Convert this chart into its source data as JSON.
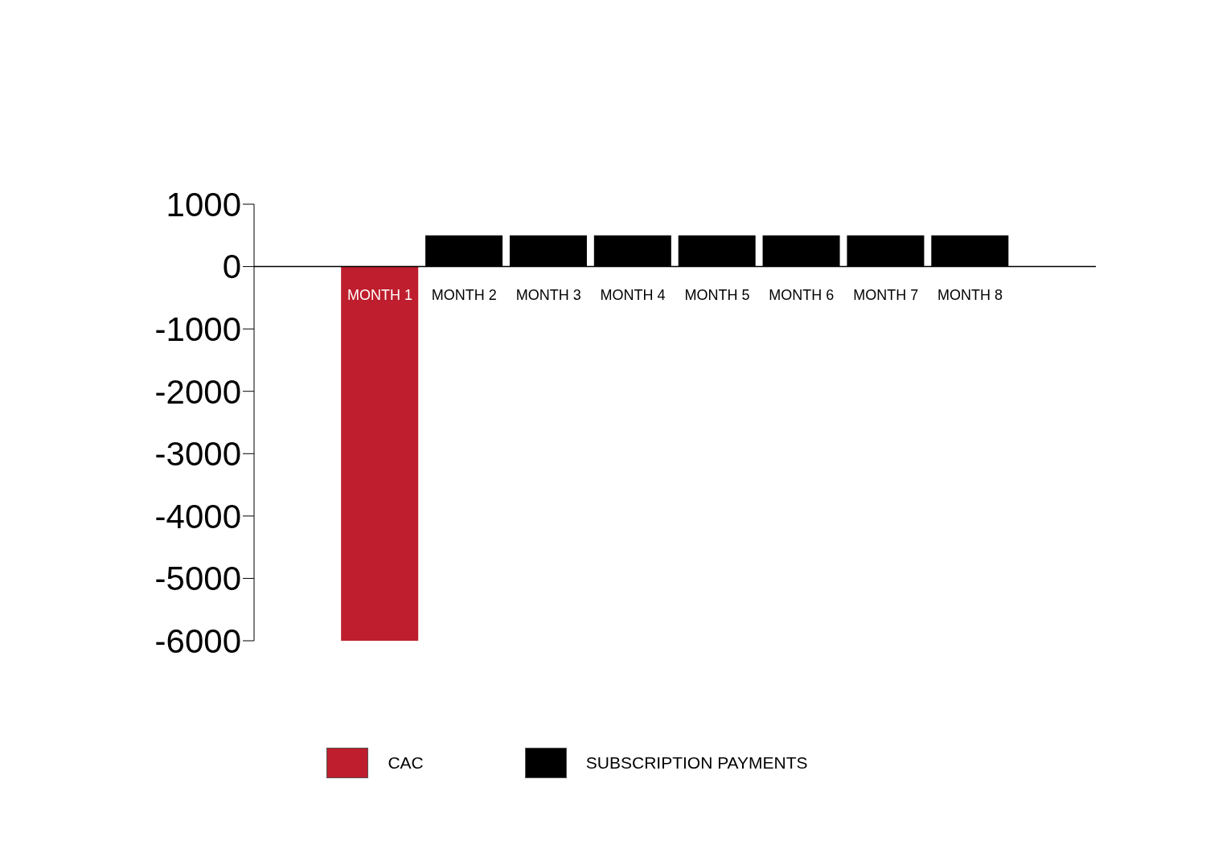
{
  "chart_data": {
    "type": "bar",
    "stacked": true,
    "categories": [
      "MONTH 1",
      "MONTH 2",
      "MONTH 3",
      "MONTH 4",
      "MONTH 5",
      "MONTH 6",
      "MONTH 7",
      "MONTH 8"
    ],
    "series": [
      {
        "name": "CAC",
        "color": "#be1e2d",
        "values": [
          -6000,
          null,
          null,
          null,
          null,
          null,
          null,
          null
        ]
      },
      {
        "name": "SUBSCRIPTION PAYMENTS",
        "color": "#000000",
        "values": [
          null,
          500,
          500,
          500,
          500,
          500,
          500,
          500
        ]
      }
    ],
    "ylim": [
      -6000,
      1000
    ],
    "yticks": [
      1000,
      0,
      -1000,
      -2000,
      -3000,
      -4000,
      -5000,
      -6000
    ],
    "legend": "bottom"
  }
}
